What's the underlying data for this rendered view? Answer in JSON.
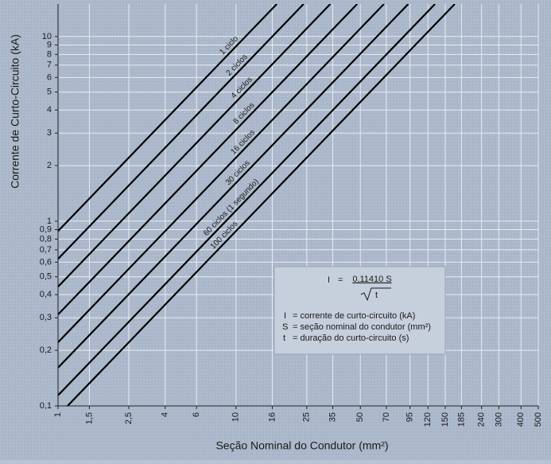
{
  "chart_data": {
    "type": "line",
    "x_label": "Seção Nominal do Condutor (mm²)",
    "y_label": "Corrente de Curto-Circuito (kA)",
    "log_x": true,
    "log_y": true,
    "grid": true,
    "xlim": [
      1,
      500
    ],
    "ylim": [
      0.1,
      15
    ],
    "xticks": [
      1,
      {
        "value": 1.5,
        "label": "1,5"
      },
      {
        "value": 2.5,
        "label": "2,5"
      },
      4,
      6,
      10,
      16,
      25,
      35,
      50,
      70,
      95,
      120,
      150,
      185,
      240,
      300,
      400,
      500
    ],
    "yticks": [
      {
        "value": 0.1,
        "label": "0,1"
      },
      {
        "value": 0.2,
        "label": "0,2"
      },
      {
        "value": 0.3,
        "label": "0,3"
      },
      {
        "value": 0.4,
        "label": "0,4"
      },
      {
        "value": 0.5,
        "label": "0,5"
      },
      {
        "value": 0.6,
        "label": "0,6"
      },
      {
        "value": 0.7,
        "label": "0,7"
      },
      {
        "value": 0.8,
        "label": "0,8"
      },
      {
        "value": 0.9,
        "label": "0,9"
      },
      1,
      2,
      3,
      4,
      5,
      6,
      7,
      8,
      9,
      10
    ],
    "series": [
      {
        "name": "1 ciclo",
        "color": "#000000",
        "x": [
          1,
          16.97
        ],
        "values": [
          0.884,
          15
        ]
      },
      {
        "name": "2 ciclos",
        "color": "#000000",
        "x": [
          1,
          24.0
        ],
        "values": [
          0.625,
          15
        ]
      },
      {
        "name": "4 ciclos",
        "color": "#000000",
        "x": [
          1,
          33.9
        ],
        "values": [
          0.442,
          15
        ]
      },
      {
        "name": "8 ciclos",
        "color": "#000000",
        "x": [
          1,
          48.0
        ],
        "values": [
          0.3125,
          15
        ]
      },
      {
        "name": "16 ciclos",
        "color": "#000000",
        "x": [
          1,
          67.9
        ],
        "values": [
          0.221,
          15
        ]
      },
      {
        "name": "30 ciclos",
        "color": "#000000",
        "x": [
          1,
          93.0
        ],
        "values": [
          0.161,
          15
        ]
      },
      {
        "name": "60 ciclos (1 segundo)",
        "color": "#000000",
        "x": [
          1,
          131.5
        ],
        "values": [
          0.1141,
          15
        ]
      },
      {
        "name": "100 ciclos",
        "color": "#000000",
        "x": [
          1.131,
          169.7
        ],
        "values": [
          0.1,
          15
        ]
      }
    ],
    "formula": {
      "lhs": "I",
      "eq": "=",
      "numerator": "0,11410 S",
      "denominator": "t"
    },
    "definitions": [
      {
        "symbol": "I",
        "text": "= corrente de curto-circuito (kA)"
      },
      {
        "symbol": "S",
        "text": "= seção nominal do condutor (mm²)"
      },
      {
        "symbol": "t",
        "text": "= duração do curto-circuito (s)"
      }
    ]
  }
}
